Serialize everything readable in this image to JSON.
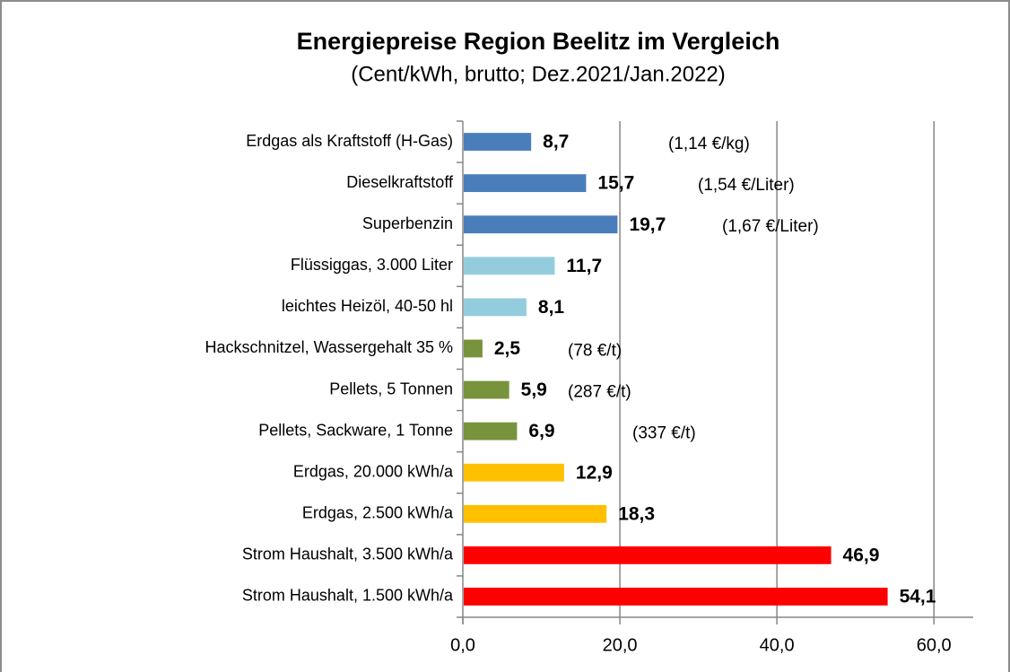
{
  "chart_data": {
    "type": "bar",
    "orientation": "horizontal",
    "title": "Energiepreise Region Beelitz  im Vergleich",
    "subtitle": "(Cent/kWh, brutto; Dez.2021/Jan.2022)",
    "categories": [
      "Erdgas als Kraftstoff (H-Gas)",
      "Dieselkraftstoff",
      "Superbenzin",
      "Flüssiggas, 3.000 Liter",
      "leichtes Heizöl, 40-50 hl",
      "Hackschnitzel, Wassergehalt 35 %",
      "Pellets, 5 Tonnen",
      "Pellets, Sackware, 1 Tonne",
      "Erdgas, 20.000 kWh/a",
      "Erdgas, 2.500 kWh/a",
      "Strom Haushalt, 3.500 kWh/a",
      "Strom Haushalt, 1.500 kWh/a"
    ],
    "values": [
      8.7,
      15.7,
      19.7,
      11.7,
      8.1,
      2.5,
      5.9,
      6.9,
      12.9,
      18.3,
      46.9,
      54.1
    ],
    "value_labels": [
      "8,7",
      "15,7",
      "19,7",
      "11,7",
      "8,1",
      "2,5",
      "5,9",
      "6,9",
      "12,9",
      "18,3",
      "46,9",
      "54,1"
    ],
    "colors": [
      "#4a7ebb",
      "#4a7ebb",
      "#4a7ebb",
      "#93cddd",
      "#93cddd",
      "#77933c",
      "#77933c",
      "#77933c",
      "#ffc000",
      "#ffc000",
      "#ff0000",
      "#ff0000"
    ],
    "annotations": [
      "(1,14 €/kg)",
      "(1,54 €/Liter)",
      "(1,67 €/Liter)",
      null,
      null,
      "(78 €/t)",
      "(287 €/t)",
      "(337 €/t)",
      null,
      null,
      null,
      null
    ],
    "xlim": [
      0,
      65
    ],
    "xticks": [
      {
        "value": 0,
        "label": "0,0"
      },
      {
        "value": 20,
        "label": "20,0"
      },
      {
        "value": 40,
        "label": "40,0"
      },
      {
        "value": 60,
        "label": "60,0"
      }
    ],
    "grid": true
  }
}
